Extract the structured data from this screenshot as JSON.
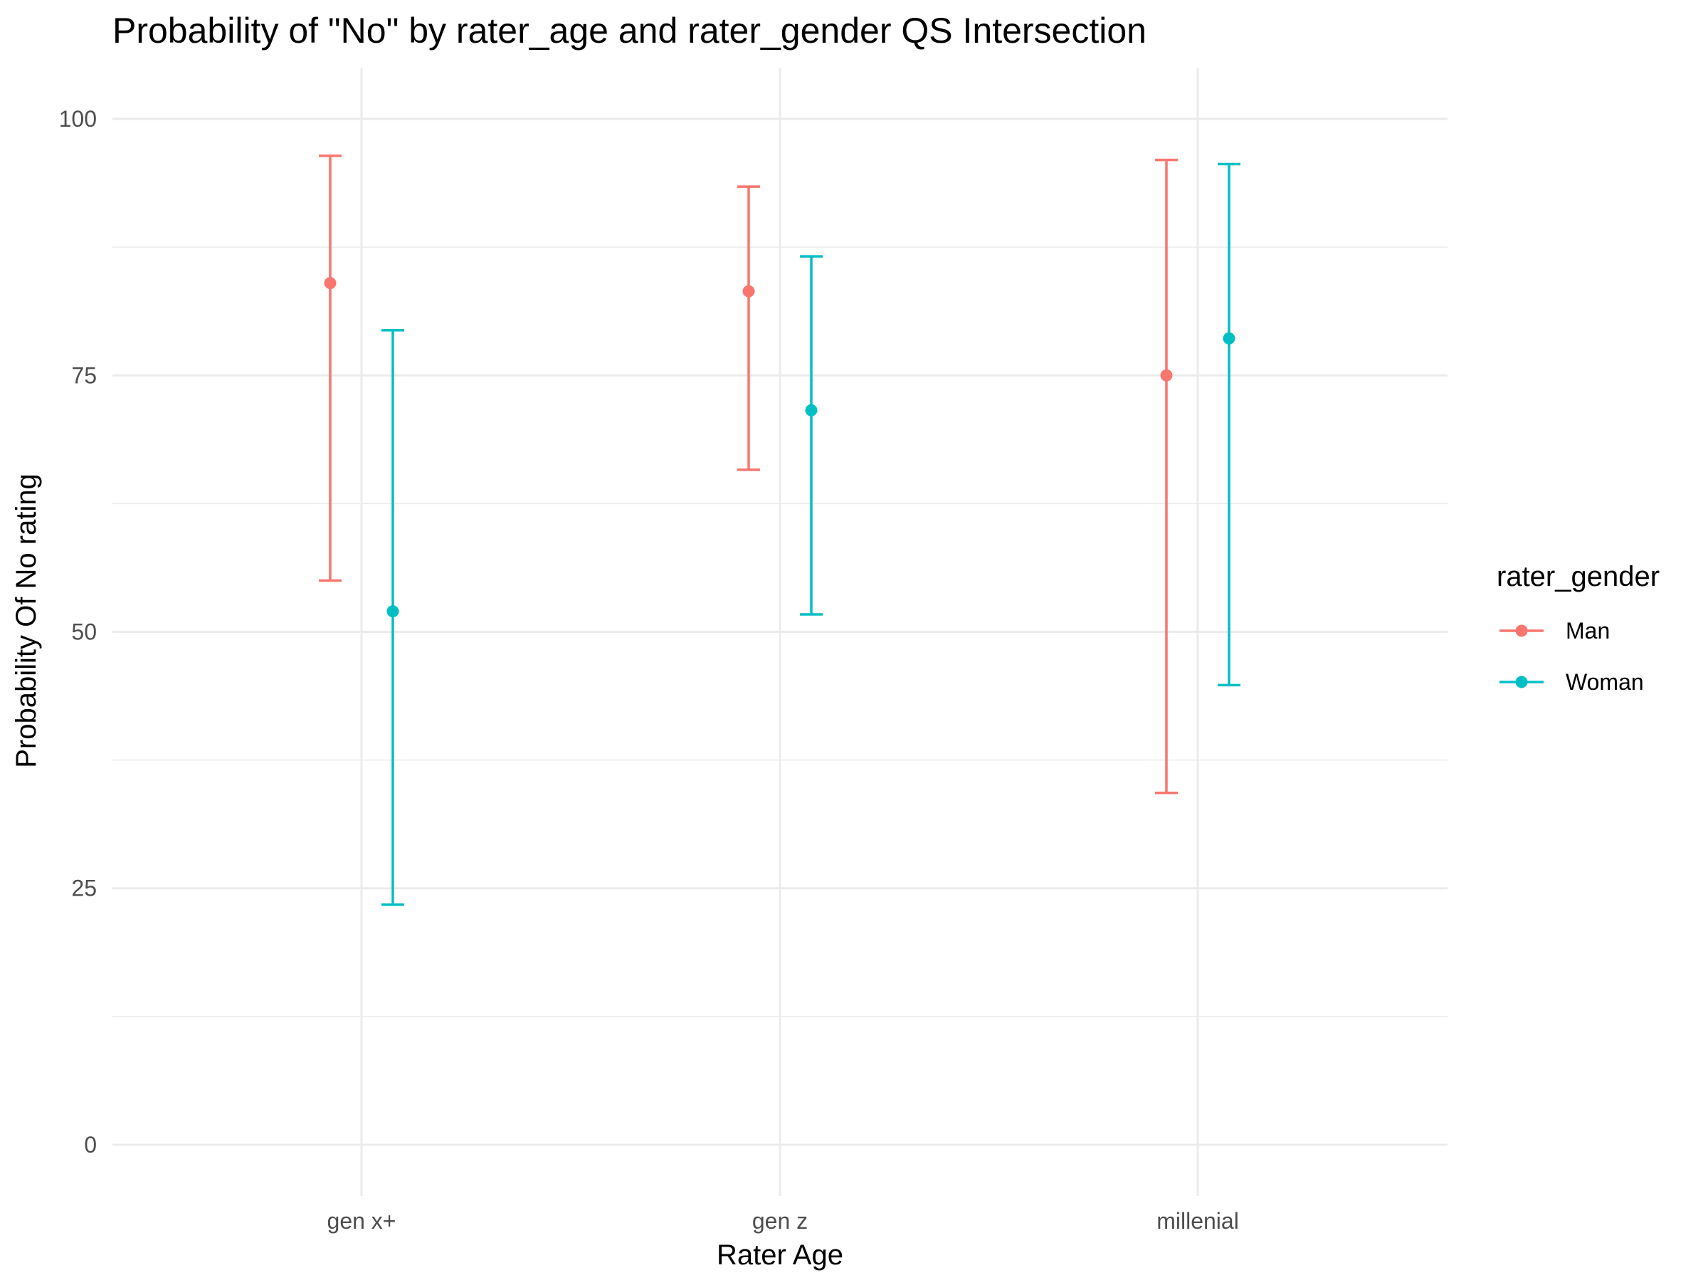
{
  "chart_data": {
    "type": "errorbar",
    "title": "Probability of \"No\" by rater_age and  rater_gender  QS Intersection",
    "xlabel": "Rater Age",
    "ylabel": "Probability Of No rating",
    "categories": [
      "gen x+",
      "gen z",
      "millenial"
    ],
    "ylim": [
      -5,
      105
    ],
    "yticks": [
      0,
      25,
      50,
      75,
      100
    ],
    "grid": true,
    "legend": {
      "title": "rater_gender",
      "placement": "right"
    },
    "series": [
      {
        "name": "Man",
        "color": "#F8766D",
        "values": [
          84.0,
          83.2,
          75.0
        ],
        "lower": [
          55.0,
          65.8,
          34.3
        ],
        "upper": [
          96.4,
          93.4,
          96.0
        ]
      },
      {
        "name": "Woman",
        "color": "#00BFC4",
        "values": [
          52.0,
          71.6,
          78.6
        ],
        "lower": [
          23.4,
          51.7,
          44.8
        ],
        "upper": [
          79.4,
          86.6,
          95.6
        ]
      }
    ]
  }
}
